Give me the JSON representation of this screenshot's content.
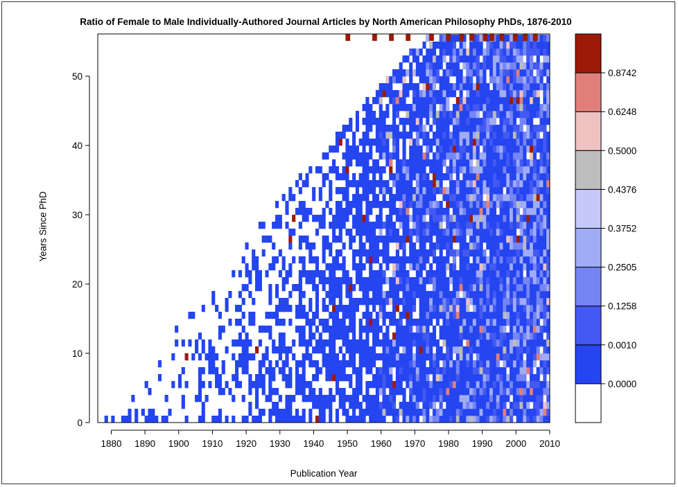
{
  "chart_data": {
    "type": "heatmap",
    "title": "Ratio of Female to Male Individually-Authored Journal Articles by North American Philosophy PhDs, 1876-2010",
    "xlabel": "Publication Year",
    "ylabel": "Years Since PhD",
    "xlim": [
      1876,
      2010
    ],
    "ylim": [
      0,
      55
    ],
    "x_ticks": [
      1880,
      1890,
      1900,
      1910,
      1920,
      1930,
      1940,
      1950,
      1960,
      1970,
      1980,
      1990,
      2000,
      2010
    ],
    "y_ticks": [
      0,
      10,
      20,
      30,
      40,
      50
    ],
    "legend": {
      "placement": "right",
      "breaks": [
        "0.0000",
        "0.0010",
        "0.1258",
        "0.2505",
        "0.3752",
        "0.4376",
        "0.5000",
        "0.6248",
        "0.8742"
      ],
      "colors": [
        "#ffffff",
        "#2445f0",
        "#4359f2",
        "#7585f4",
        "#a0acf6",
        "#c4c9f9",
        "#bdbdbd",
        "#efc2c2",
        "#e07f7a",
        "#9c1b06"
      ]
    },
    "density_note_visible": false
  },
  "colors": {
    "background": "#ffffff",
    "frame": "#333333",
    "axis": "#000000"
  }
}
